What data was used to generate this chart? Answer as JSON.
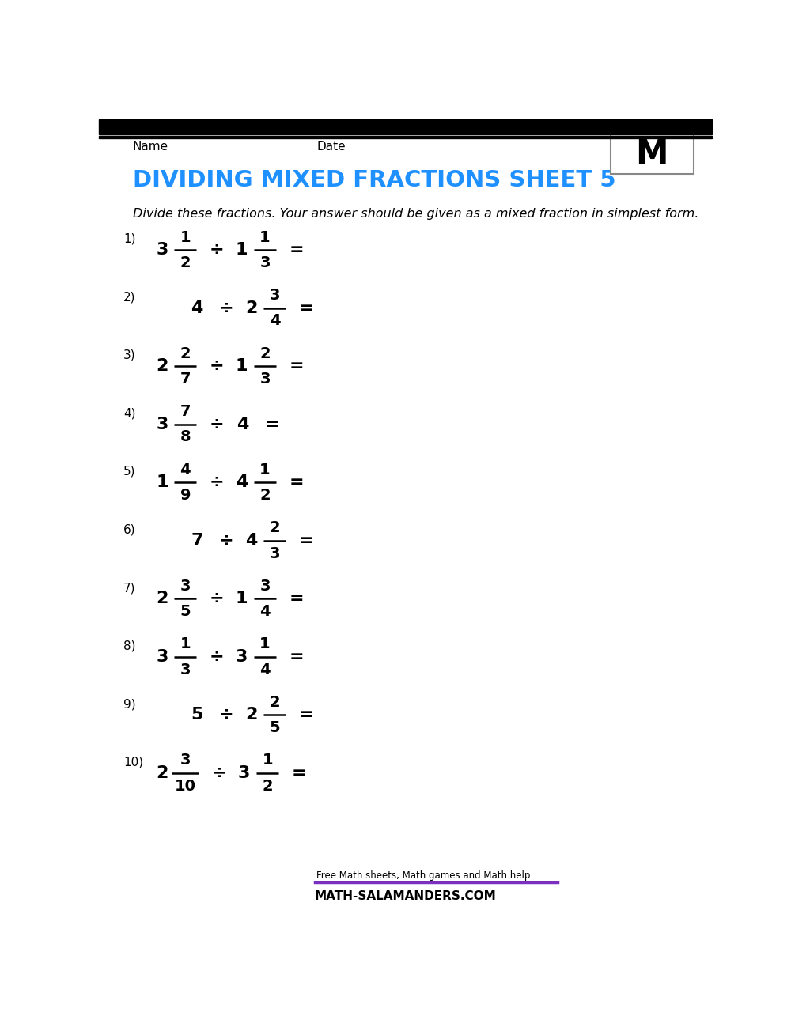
{
  "title": "DIVIDING MIXED FRACTIONS SHEET 5",
  "title_color": "#1E90FF",
  "header_name": "Name",
  "header_date": "Date",
  "subtitle": "Divide these fractions. Your answer should be given as a mixed fraction in simplest form.",
  "background_color": "#FFFFFF",
  "problems": [
    {
      "num": "1)",
      "left_whole": "3",
      "left_num": "1",
      "left_den": "2",
      "op": "÷",
      "right_whole": "1",
      "right_num": "1",
      "right_den": "3",
      "eq": "=",
      "left_is_whole": false,
      "right_is_whole": false
    },
    {
      "num": "2)",
      "left_whole": "4",
      "left_num": "",
      "left_den": "",
      "op": "÷",
      "right_whole": "2",
      "right_num": "3",
      "right_den": "4",
      "eq": "=",
      "left_is_whole": true,
      "right_is_whole": false
    },
    {
      "num": "3)",
      "left_whole": "2",
      "left_num": "2",
      "left_den": "7",
      "op": "÷",
      "right_whole": "1",
      "right_num": "2",
      "right_den": "3",
      "eq": "=",
      "left_is_whole": false,
      "right_is_whole": false
    },
    {
      "num": "4)",
      "left_whole": "3",
      "left_num": "7",
      "left_den": "8",
      "op": "÷",
      "right_whole": "4",
      "right_num": "",
      "right_den": "",
      "eq": "=",
      "left_is_whole": false,
      "right_is_whole": true
    },
    {
      "num": "5)",
      "left_whole": "1",
      "left_num": "4",
      "left_den": "9",
      "op": "÷",
      "right_whole": "4",
      "right_num": "1",
      "right_den": "2",
      "eq": "=",
      "left_is_whole": false,
      "right_is_whole": false
    },
    {
      "num": "6)",
      "left_whole": "7",
      "left_num": "",
      "left_den": "",
      "op": "÷",
      "right_whole": "4",
      "right_num": "2",
      "right_den": "3",
      "eq": "=",
      "left_is_whole": true,
      "right_is_whole": false
    },
    {
      "num": "7)",
      "left_whole": "2",
      "left_num": "3",
      "left_den": "5",
      "op": "÷",
      "right_whole": "1",
      "right_num": "3",
      "right_den": "4",
      "eq": "=",
      "left_is_whole": false,
      "right_is_whole": false
    },
    {
      "num": "8)",
      "left_whole": "3",
      "left_num": "1",
      "left_den": "3",
      "op": "÷",
      "right_whole": "3",
      "right_num": "1",
      "right_den": "4",
      "eq": "=",
      "left_is_whole": false,
      "right_is_whole": false
    },
    {
      "num": "9)",
      "left_whole": "5",
      "left_num": "",
      "left_den": "",
      "op": "÷",
      "right_whole": "2",
      "right_num": "2",
      "right_den": "5",
      "eq": "=",
      "left_is_whole": true,
      "right_is_whole": false
    },
    {
      "num": "10)",
      "left_whole": "2",
      "left_num": "3",
      "left_den": "10",
      "op": "÷",
      "right_whole": "3",
      "right_num": "1",
      "right_den": "2",
      "eq": "=",
      "left_is_whole": false,
      "right_is_whole": false
    }
  ]
}
